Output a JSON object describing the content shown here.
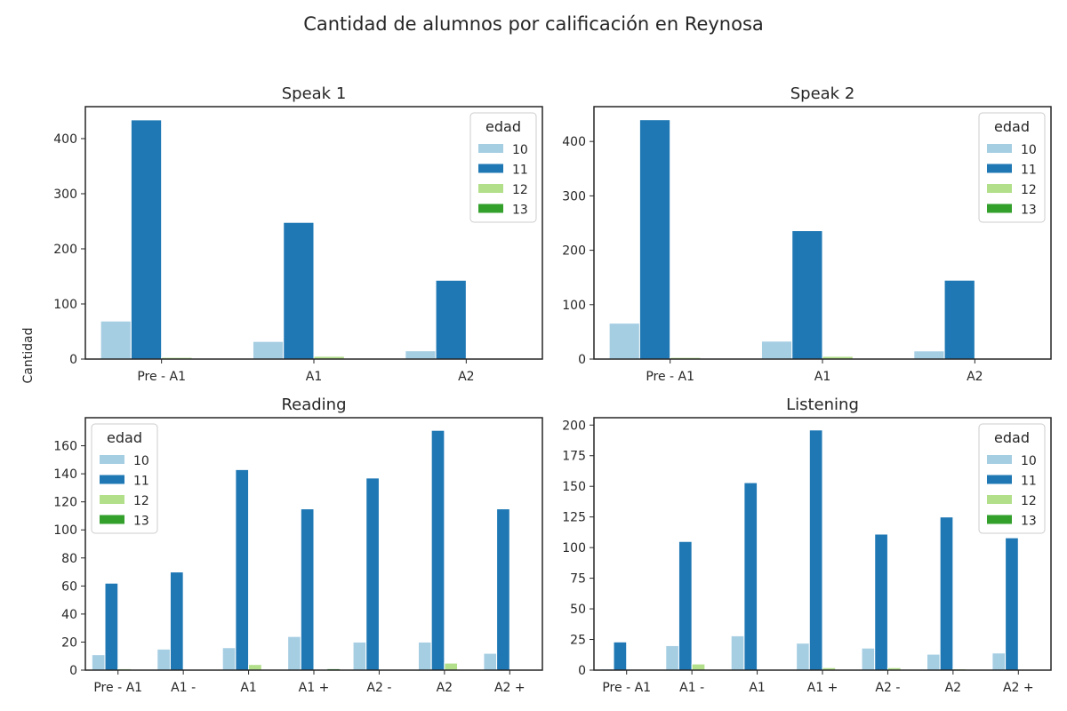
{
  "figure": {
    "title": "Cantidad de alumnos por calificación en Reynosa",
    "ylabel": "Cantidad"
  },
  "colors": {
    "10": "#a6cee3",
    "11": "#1f78b4",
    "12": "#b2df8a",
    "13": "#33a02c"
  },
  "chart_data": [
    {
      "type": "bar",
      "title": "Speak 1",
      "categories": [
        "Pre - A1",
        "A1",
        "A2"
      ],
      "series": [
        {
          "name": "10",
          "values": [
            69,
            32,
            15
          ]
        },
        {
          "name": "11",
          "values": [
            434,
            248,
            143
          ]
        },
        {
          "name": "12",
          "values": [
            3,
            5,
            0
          ]
        },
        {
          "name": "13",
          "values": [
            0,
            0,
            0
          ]
        }
      ],
      "ylim": [
        0,
        458
      ],
      "yticks": [
        0,
        100,
        200,
        300,
        400
      ],
      "legend": {
        "title": "edad",
        "placement": "upper-right"
      }
    },
    {
      "type": "bar",
      "title": "Speak 2",
      "categories": [
        "Pre - A1",
        "A1",
        "A2"
      ],
      "series": [
        {
          "name": "10",
          "values": [
            66,
            33,
            15
          ]
        },
        {
          "name": "11",
          "values": [
            440,
            236,
            145
          ]
        },
        {
          "name": "12",
          "values": [
            3,
            5,
            0
          ]
        },
        {
          "name": "13",
          "values": [
            0,
            0,
            0
          ]
        }
      ],
      "ylim": [
        0,
        464
      ],
      "yticks": [
        0,
        100,
        200,
        300,
        400
      ],
      "legend": {
        "title": "edad",
        "placement": "upper-right"
      }
    },
    {
      "type": "bar",
      "title": "Reading",
      "categories": [
        "Pre - A1",
        "A1 -",
        "A1",
        "A1 +",
        "A2 -",
        "A2",
        "A2 +"
      ],
      "series": [
        {
          "name": "10",
          "values": [
            11,
            15,
            16,
            24,
            20,
            20,
            12
          ]
        },
        {
          "name": "11",
          "values": [
            62,
            70,
            143,
            115,
            137,
            171,
            115
          ]
        },
        {
          "name": "12",
          "values": [
            1,
            0,
            4,
            0,
            0,
            5,
            0
          ]
        },
        {
          "name": "13",
          "values": [
            0,
            0,
            0,
            1,
            0,
            0,
            0
          ]
        }
      ],
      "ylim": [
        0,
        180
      ],
      "yticks": [
        0,
        20,
        40,
        60,
        80,
        100,
        120,
        140,
        160
      ],
      "legend": {
        "title": "edad",
        "placement": "upper-left"
      }
    },
    {
      "type": "bar",
      "title": "Listening",
      "categories": [
        "Pre - A1",
        "A1 -",
        "A1",
        "A1 +",
        "A2 -",
        "A2",
        "A2 +"
      ],
      "series": [
        {
          "name": "10",
          "values": [
            1,
            20,
            28,
            22,
            18,
            13,
            14
          ]
        },
        {
          "name": "11",
          "values": [
            23,
            105,
            153,
            196,
            111,
            125,
            108
          ]
        },
        {
          "name": "12",
          "values": [
            0,
            5,
            0,
            2,
            2,
            1,
            0
          ]
        },
        {
          "name": "13",
          "values": [
            0,
            0,
            0,
            0,
            0,
            0,
            0
          ]
        }
      ],
      "ylim": [
        0,
        206
      ],
      "yticks": [
        0,
        25,
        50,
        75,
        100,
        125,
        150,
        175,
        200
      ],
      "legend": {
        "title": "edad",
        "placement": "upper-right"
      }
    }
  ]
}
